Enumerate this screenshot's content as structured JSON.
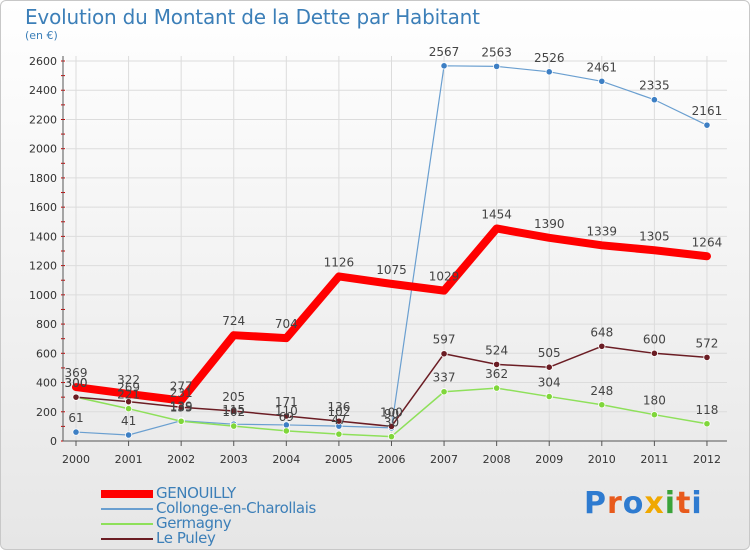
{
  "chart_data": {
    "type": "line",
    "title": "Evolution du Montant de la Dette par Habitant",
    "subtitle": "(en €)",
    "xlabel": "",
    "ylabel": "",
    "categories": [
      "2000",
      "2001",
      "2002",
      "2003",
      "2004",
      "2005",
      "2006",
      "2007",
      "2008",
      "2009",
      "2010",
      "2011",
      "2012"
    ],
    "ylim": [
      0,
      2600
    ],
    "yticks": [
      0,
      200,
      400,
      600,
      800,
      1000,
      1200,
      1400,
      1600,
      1800,
      2000,
      2200,
      2400,
      2600
    ],
    "legend_position": "bottom-left",
    "series": [
      {
        "name": "GENOUILLY",
        "color": "#ff0000",
        "values": [
          369,
          322,
          277,
          724,
          704,
          1126,
          1075,
          1029,
          1454,
          1390,
          1339,
          1305,
          1264
        ]
      },
      {
        "name": "Collonge-en-Charollais",
        "color": "#6a9fd0",
        "values": [
          61,
          41,
          139,
          115,
          110,
          102,
          90,
          2567,
          2563,
          2526,
          2461,
          2335,
          2161
        ]
      },
      {
        "name": "Germagny",
        "color": "#8ee05a",
        "values": [
          300,
          221,
          135,
          102,
          69,
          47,
          30,
          337,
          362,
          304,
          248,
          180,
          118
        ]
      },
      {
        "name": "Le Puley",
        "color": "#6b1d24",
        "values": [
          300,
          269,
          231,
          205,
          171,
          136,
          100,
          597,
          524,
          505,
          648,
          600,
          572
        ]
      }
    ]
  },
  "logo": {
    "text": "Proxiti",
    "icon": "proxiti-logo"
  }
}
